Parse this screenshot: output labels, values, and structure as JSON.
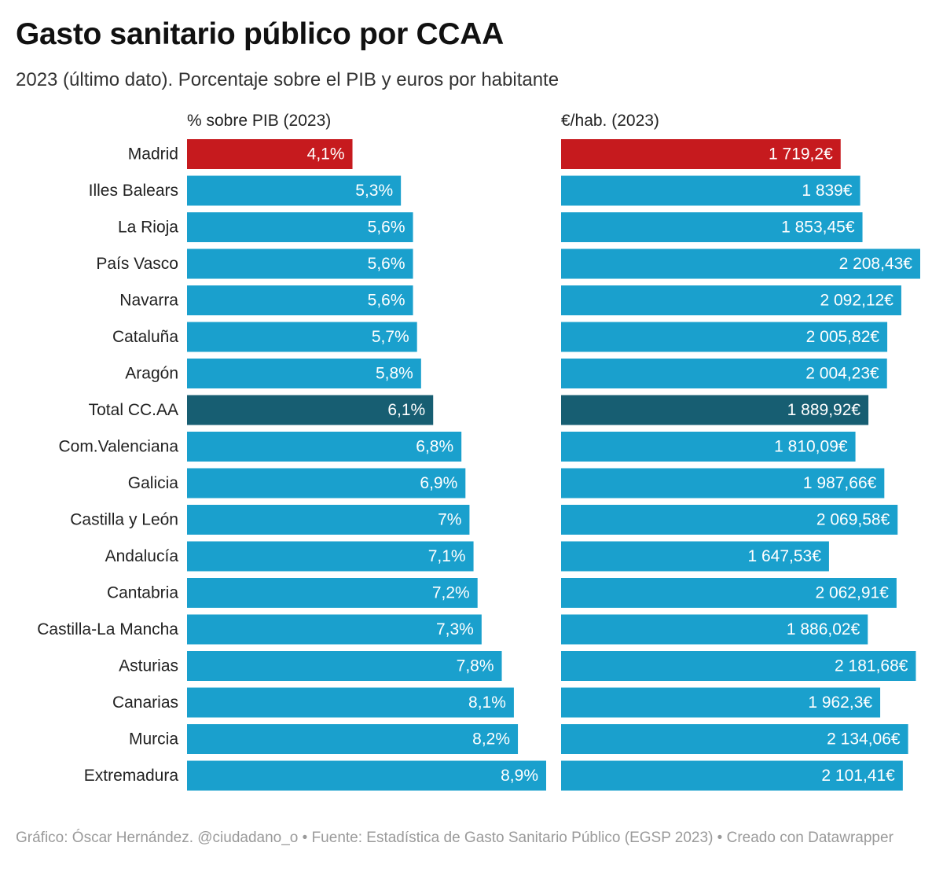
{
  "title": "Gasto sanitario público por CCAA",
  "subtitle": "2023 (último dato). Porcentaje sobre el PIB y euros por habitante",
  "footer": "Gráfico: Óscar Hernández. @ciudadano_o • Fuente: Estadística de Gasto Sanitario Público (EGSP 2023) • Creado con Datawrapper",
  "colors": {
    "default": "#1aa0cd",
    "highlight": "#c61a1e",
    "total": "#175e72",
    "bar_label": "#ffffff",
    "category_label": "#222222"
  },
  "chart_data": {
    "type": "bar",
    "orientation": "horizontal",
    "categories": [
      "Madrid",
      "Illes Balears",
      "La Rioja",
      "País Vasco",
      "Navarra",
      "Cataluña",
      "Aragón",
      "Total CC.AA",
      "Com.Valenciana",
      "Galicia",
      "Castilla y León",
      "Andalucía",
      "Cantabria",
      "Castilla-La Mancha",
      "Asturias",
      "Canarias",
      "Murcia",
      "Extremadura"
    ],
    "highlight": {
      "Madrid": "highlight",
      "Total CC.AA": "total"
    },
    "series": [
      {
        "name": "% sobre PIB (2023)",
        "values": [
          4.1,
          5.3,
          5.6,
          5.6,
          5.6,
          5.7,
          5.8,
          6.1,
          6.8,
          6.9,
          7.0,
          7.1,
          7.2,
          7.3,
          7.8,
          8.1,
          8.2,
          8.9
        ],
        "labels": [
          "4,1%",
          "5,3%",
          "5,6%",
          "5,6%",
          "5,6%",
          "5,7%",
          "5,8%",
          "6,1%",
          "6,8%",
          "6,9%",
          "7%",
          "7,1%",
          "7,2%",
          "7,3%",
          "7,8%",
          "8,1%",
          "8,2%",
          "8,9%"
        ],
        "xlim": [
          0,
          8.9
        ]
      },
      {
        "name": "€/hab. (2023)",
        "values": [
          1719.2,
          1839,
          1853.45,
          2208.43,
          2092.12,
          2005.82,
          2004.23,
          1889.92,
          1810.09,
          1987.66,
          2069.58,
          1647.53,
          2062.91,
          1886.02,
          2181.68,
          1962.3,
          2134.06,
          2101.41
        ],
        "labels": [
          "1 719,2€",
          "1 839€",
          "1 853,45€",
          "2 208,43€",
          "2 092,12€",
          "2 005,82€",
          "2 004,23€",
          "1 889,92€",
          "1 810,09€",
          "1 987,66€",
          "2 069,58€",
          "1 647,53€",
          "2 062,91€",
          "1 886,02€",
          "2 181,68€",
          "1 962,3€",
          "2 134,06€",
          "2 101,41€"
        ],
        "xlim": [
          0,
          2208.43
        ]
      }
    ]
  }
}
